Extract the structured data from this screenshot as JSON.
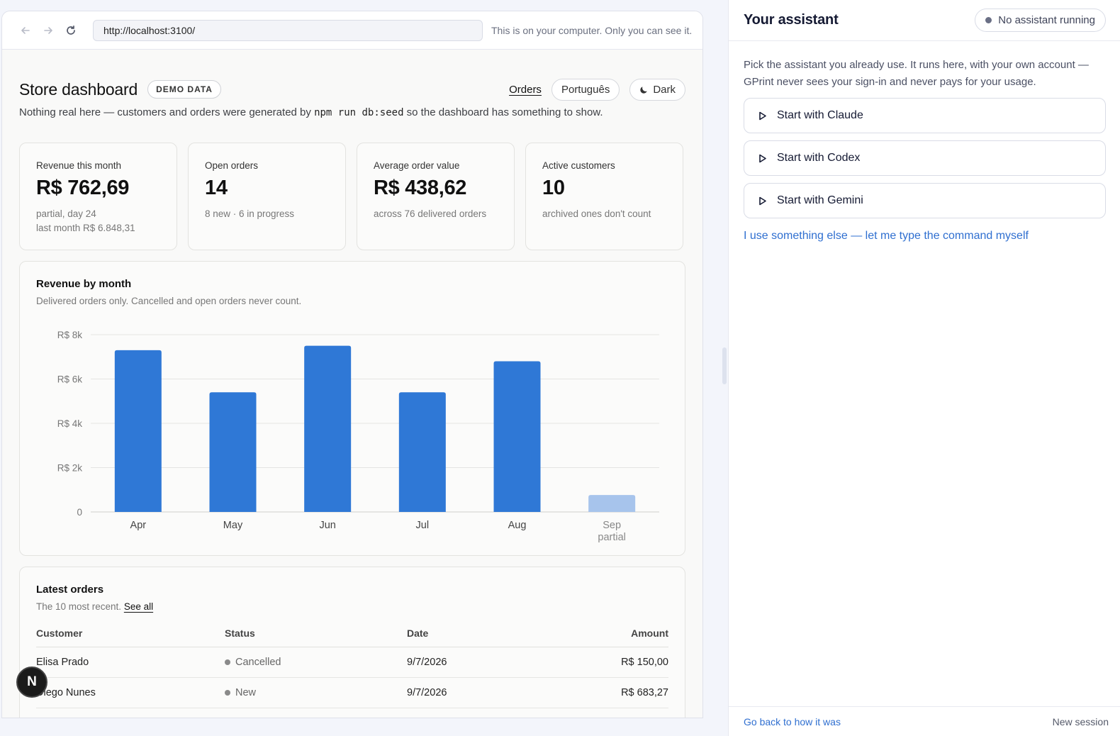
{
  "browser": {
    "url": "http://localhost:3100/",
    "note": "This is on your computer. Only you can see it."
  },
  "dashboard": {
    "title": "Store dashboard",
    "badge": "DEMO DATA",
    "orders_link": "Orders",
    "language_button": "Português",
    "theme_button": "Dark",
    "subtitle_before": "Nothing real here — customers and orders were generated by",
    "subtitle_code": "npm run db:seed",
    "subtitle_after": "so the dashboard has something to show."
  },
  "stats": [
    {
      "label": "Revenue this month",
      "value": "R$ 762,69",
      "note1": "partial, day 24",
      "note2": "last month R$ 6.848,31"
    },
    {
      "label": "Open orders",
      "value": "14",
      "note1": "8 new · 6 in progress",
      "note2": ""
    },
    {
      "label": "Average order value",
      "value": "R$ 438,62",
      "note1": "across 76 delivered orders",
      "note2": ""
    },
    {
      "label": "Active customers",
      "value": "10",
      "note1": "archived ones don't count",
      "note2": ""
    }
  ],
  "chart_data": {
    "type": "bar",
    "title": "Revenue by month",
    "subtitle": "Delivered orders only. Cancelled and open orders never count.",
    "categories": [
      "Apr",
      "May",
      "Jun",
      "Jul",
      "Aug",
      "Sep"
    ],
    "category_notes": [
      "",
      "",
      "",
      "",
      "",
      "partial"
    ],
    "values": [
      7300,
      5400,
      7500,
      5400,
      6800,
      762.69
    ],
    "partial_index": 5,
    "ylim": [
      0,
      8000
    ],
    "yticks": [
      0,
      2000,
      4000,
      6000,
      8000
    ],
    "ytick_labels": [
      "0",
      "R$ 2k",
      "R$ 4k",
      "R$ 6k",
      "R$ 8k"
    ],
    "grid": true,
    "colors": {
      "bar": "#2f78d6",
      "partial": "#a7c4ec",
      "grid": "#e4e4e2",
      "axis": "#cfcfcc"
    }
  },
  "orders": {
    "title": "Latest orders",
    "subtitle": "The 10 most recent.",
    "see_all": "See all",
    "columns": [
      "Customer",
      "Status",
      "Date",
      "Amount"
    ],
    "rows": [
      {
        "customer": "Elisa Prado",
        "status": "Cancelled",
        "date": "9/7/2026",
        "amount": "R$ 150,00"
      },
      {
        "customer": "Diego Nunes",
        "status": "New",
        "date": "9/7/2026",
        "amount": "R$ 683,27"
      }
    ]
  },
  "avatar": "N",
  "assistant": {
    "title": "Your assistant",
    "status": "No assistant running",
    "intro": "Pick the assistant you already use. It runs here, with your own account — GPrint never sees your sign-in and never pays for your usage.",
    "buttons": [
      "Start with Claude",
      "Start with Codex",
      "Start with Gemini"
    ],
    "custom_link": "I use something else — let me type the command myself",
    "footer_back": "Go back to how it was",
    "footer_new": "New session"
  }
}
